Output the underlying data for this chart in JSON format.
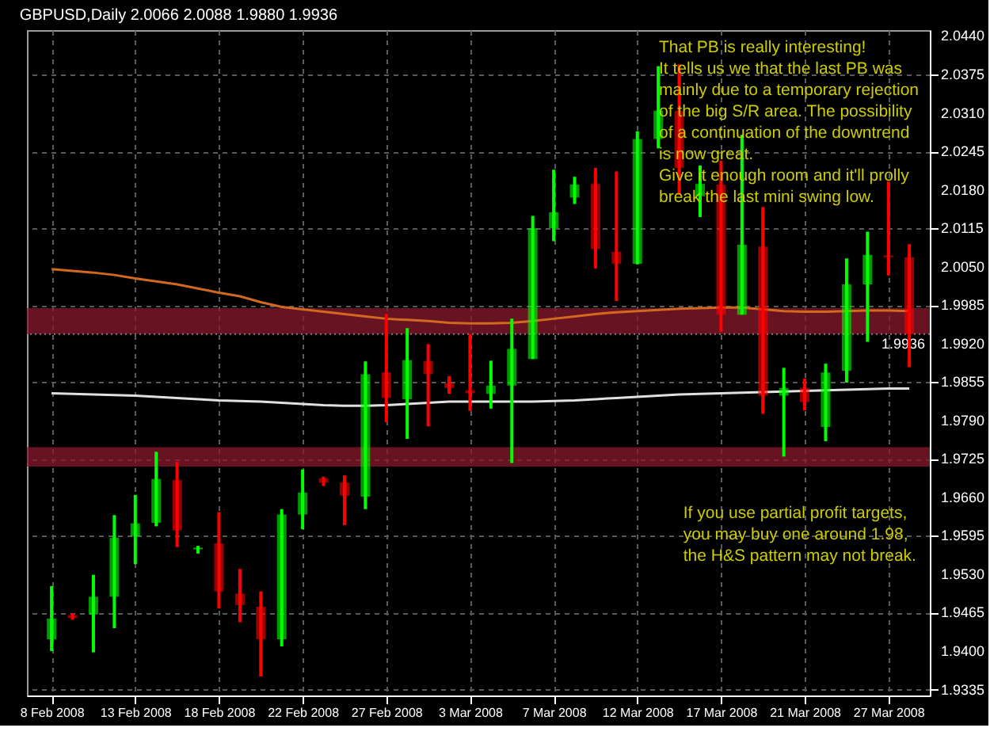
{
  "chart_data": {
    "type": "candlestick",
    "title": "GBPUSD,Daily  2.0066 2.0088 1.9880 1.9936",
    "categories": [
      "8 Feb 2008",
      null,
      null,
      null,
      "13 Feb 2008",
      null,
      null,
      null,
      "18 Feb 2008",
      null,
      null,
      null,
      "22 Feb 2008",
      null,
      null,
      null,
      "27 Feb 2008",
      null,
      null,
      null,
      "3 Mar 2008",
      null,
      null,
      null,
      "7 Mar 2008",
      null,
      null,
      null,
      "12 Mar 2008",
      null,
      null,
      null,
      "17 Mar 2008",
      null,
      null,
      null,
      "21 Mar 2008",
      null,
      null,
      null,
      "27 Mar 2008",
      null
    ],
    "ohlc": [
      [
        1.942,
        1.951,
        1.94,
        1.9455
      ],
      [
        1.9461,
        1.9464,
        1.9453,
        1.9456
      ],
      [
        1.9462,
        1.9529,
        1.9398,
        1.9492
      ],
      [
        1.9492,
        1.963,
        1.9439,
        1.9592
      ],
      [
        1.9594,
        1.9664,
        1.9547,
        1.9616
      ],
      [
        1.9617,
        1.9737,
        1.9611,
        1.9691
      ],
      [
        1.9689,
        1.972,
        1.9576,
        1.9604
      ],
      [
        1.9572,
        1.9578,
        1.9565,
        1.9575
      ],
      [
        1.9582,
        1.9635,
        1.9472,
        1.9501
      ],
      [
        1.9497,
        1.9539,
        1.9449,
        1.9478
      ],
      [
        1.9475,
        1.9501,
        1.9357,
        1.942
      ],
      [
        1.942,
        1.964,
        1.9408,
        1.9631
      ],
      [
        1.9631,
        1.9707,
        1.9606,
        1.9668
      ],
      [
        1.9692,
        1.9695,
        1.9679,
        1.9685
      ],
      [
        1.9685,
        1.9697,
        1.9613,
        1.9663
      ],
      [
        1.9661,
        1.989,
        1.964,
        1.9868
      ],
      [
        1.9871,
        1.997,
        1.9787,
        1.9828
      ],
      [
        1.9826,
        1.9946,
        1.9759,
        1.9892
      ],
      [
        1.989,
        1.9919,
        1.978,
        1.9869
      ],
      [
        1.9853,
        1.9865,
        1.9835,
        1.9845
      ],
      [
        1.9841,
        1.9936,
        1.9806,
        1.9836
      ],
      [
        1.9835,
        1.9891,
        1.981,
        1.9849
      ],
      [
        1.9849,
        1.9962,
        1.9718,
        1.9911
      ],
      [
        1.9894,
        2.0136,
        1.9894,
        2.0115
      ],
      [
        2.0115,
        2.0214,
        2.0093,
        2.0142
      ],
      [
        2.0167,
        2.0202,
        2.0156,
        2.0189
      ],
      [
        2.019,
        2.0217,
        2.0047,
        2.008
      ],
      [
        2.0075,
        2.0211,
        1.9992,
        2.0055
      ],
      [
        2.0055,
        2.0279,
        2.0054,
        2.0266
      ],
      [
        2.0266,
        2.0389,
        2.025,
        2.0314
      ],
      [
        2.0313,
        2.0392,
        2.0171,
        2.0217
      ],
      [
        2.0169,
        2.0221,
        2.0134,
        2.019
      ],
      [
        2.0189,
        2.0229,
        1.994,
        1.9969
      ],
      [
        1.9969,
        2.0273,
        1.9969,
        2.0087
      ],
      [
        2.0084,
        2.0151,
        1.9801,
        1.9832
      ],
      [
        1.9832,
        1.9879,
        1.9729,
        1.9845
      ],
      [
        1.9845,
        1.9861,
        1.9807,
        1.9821
      ],
      [
        1.9779,
        1.9886,
        1.9755,
        1.9871
      ],
      [
        1.9874,
        2.0064,
        1.9854,
        2.002
      ],
      [
        2.002,
        2.0109,
        1.9923,
        2.007
      ],
      [
        2.0069,
        2.0194,
        2.0035,
        2.0066
      ],
      [
        2.0066,
        2.0088,
        1.988,
        1.9936
      ]
    ],
    "colors": [
      "#00ff00",
      "#ff0000",
      "#00ff00",
      "#00ff00",
      "#00ff00",
      "#00ff00",
      "#ff0000",
      "#00ff00",
      "#ff0000",
      "#ff0000",
      "#ff0000",
      "#00ff00",
      "#00ff00",
      "#ff0000",
      "#ff0000",
      "#00ff00",
      "#ff0000",
      "#00ff00",
      "#ff0000",
      "#ff0000",
      "#ff0000",
      "#00ff00",
      "#00ff00",
      "#00ff00",
      "#00ff00",
      "#00ff00",
      "#ff0000",
      "#ff0000",
      "#00ff00",
      "#00ff00",
      "#ff0000",
      "#00ff00",
      "#ff0000",
      "#00ff00",
      "#ff0000",
      "#00ff00",
      "#ff0000",
      "#00ff00",
      "#00ff00",
      "#00ff00",
      "#ff0000",
      "#ff0000"
    ],
    "series": [
      {
        "type": "line",
        "color": "#d2691e",
        "values": [
          2.0046,
          2.0043,
          2.004,
          2.0036,
          2.003,
          2.0025,
          2.002,
          2.0013,
          2.0006,
          2.0,
          1.999,
          1.9982,
          1.9978,
          1.9974,
          1.997,
          1.9966,
          1.9962,
          1.996,
          1.9958,
          1.9955,
          1.9954,
          1.9954,
          1.9955,
          1.9958,
          1.9962,
          1.9966,
          1.997,
          1.9973,
          1.9975,
          1.9977,
          1.9979,
          1.998,
          1.9981,
          1.9981,
          1.9978,
          1.9975,
          1.9974,
          1.9974,
          1.9975,
          1.9976,
          1.9976,
          1.9975
        ]
      },
      {
        "type": "line",
        "color": "#e0e0e0",
        "values": [
          1.9836,
          1.9835,
          1.9834,
          1.9833,
          1.9832,
          1.983,
          1.9828,
          1.9826,
          1.9824,
          1.9823,
          1.9822,
          1.982,
          1.9818,
          1.9816,
          1.9815,
          1.9815,
          1.9816,
          1.9818,
          1.982,
          1.9822,
          1.9822,
          1.9822,
          1.9822,
          1.9822,
          1.9823,
          1.9824,
          1.9826,
          1.9828,
          1.983,
          1.9832,
          1.9834,
          1.9835,
          1.9836,
          1.9837,
          1.9838,
          1.9839,
          1.984,
          1.9841,
          1.9842,
          1.9843,
          1.9844,
          1.9844
        ]
      }
    ],
    "ylim": [
      1.9325,
      2.045
    ],
    "yticks": [
      1.9335,
      {
        "value": 1.94,
        "label": "1.9400"
      },
      1.9465,
      {
        "value": 1.953,
        "label": "1.9530"
      },
      1.9595,
      {
        "value": 1.966,
        "label": "1.9660"
      },
      1.9725,
      {
        "value": 1.979,
        "label": "1.9790"
      },
      1.9855,
      {
        "value": 1.992,
        "label": "1.9920"
      },
      1.9985,
      {
        "value": 2.005,
        "label": "2.0050"
      },
      2.0115,
      {
        "value": 2.018,
        "label": "2.0180"
      },
      2.0245,
      {
        "value": 2.031,
        "label": "2.0310"
      },
      2.0375,
      {
        "value": 2.044,
        "label": "2.0440"
      }
    ],
    "grid": true,
    "ref_lines": [
      {
        "axis": "y",
        "value": 1.9936,
        "label": "1.9936",
        "color": "#808080",
        "line_style": "dotted"
      }
    ],
    "bands": [
      {
        "axis": "y",
        "from": 1.9936,
        "to": 1.998,
        "color": "#8b1a2e"
      },
      {
        "axis": "y",
        "from": 1.9712,
        "to": 1.9745,
        "color": "#8b1a2e"
      }
    ],
    "annotations": [
      "That PB is really interesting!\nIt tells us we that the last PB was\nmainly due to a temporary rejection\nof the big S/R area. The possibility\nof a continuation of the downtrend\nis now great.\nGive it enough room and it'll prolly\nbreak the last mini swing low.",
      "If you use partial profit targets,\nyou may buy one around 1.98,\nthe H&S pattern may not break."
    ]
  }
}
